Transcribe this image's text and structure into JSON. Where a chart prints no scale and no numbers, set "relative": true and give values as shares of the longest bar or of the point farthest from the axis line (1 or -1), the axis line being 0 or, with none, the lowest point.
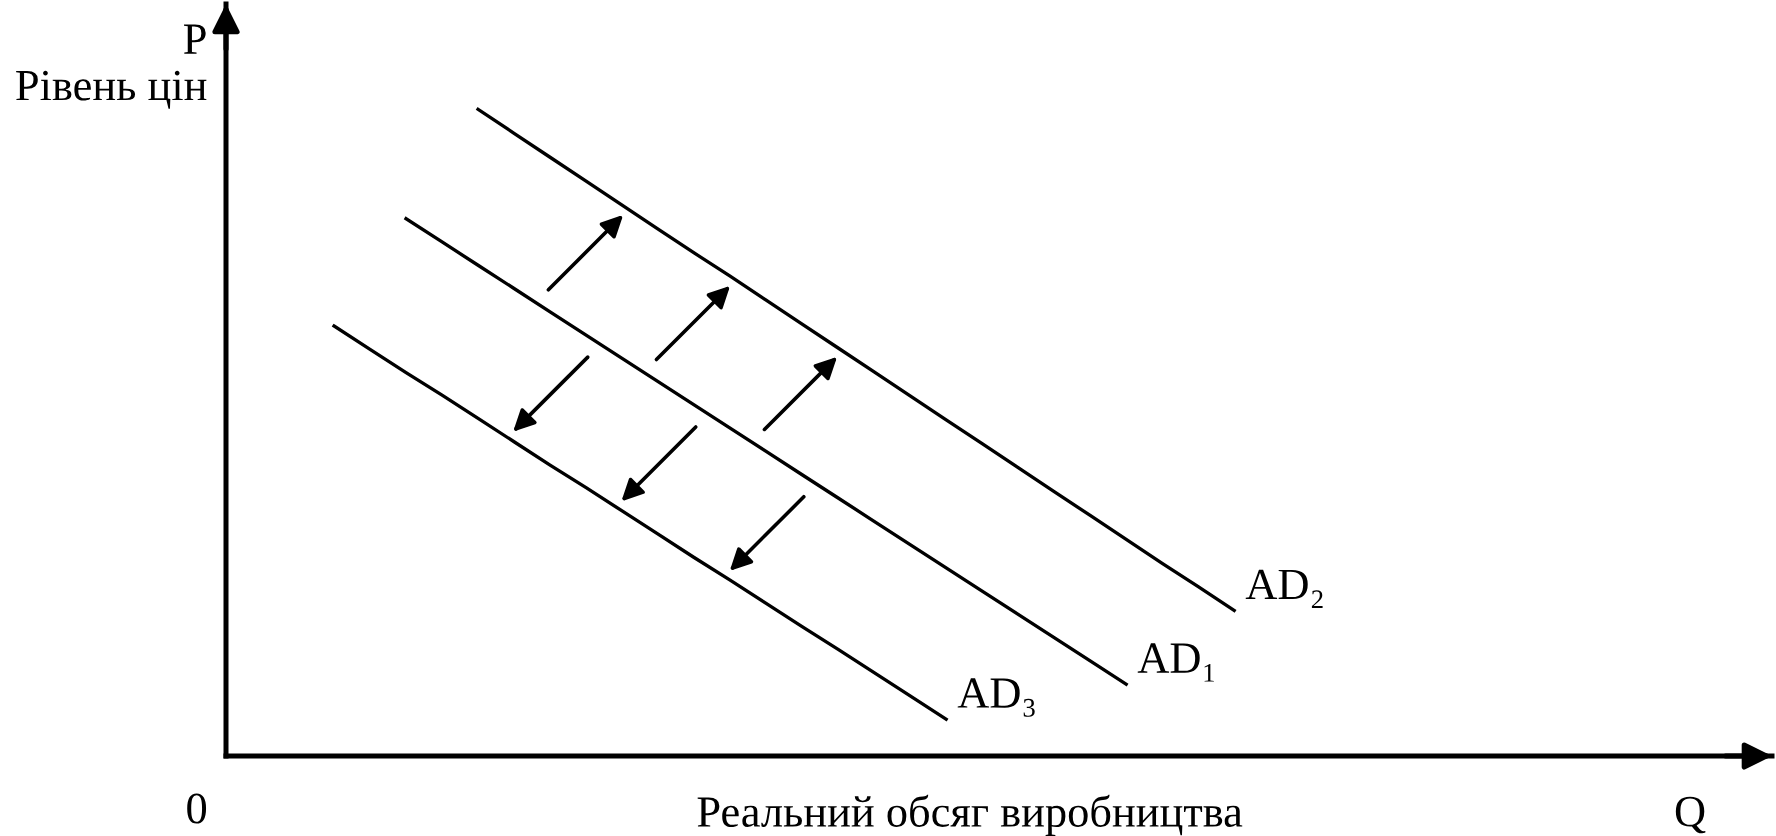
{
  "chart_data": {
    "type": "line",
    "relative": true,
    "ylabel": "P\nРівень цін",
    "xlabel": "Реальний обсяг виробництва",
    "annotations": [
      "Q",
      "0"
    ],
    "line_style": "solid",
    "categories": [
      null,
      null,
      null,
      null,
      null,
      null,
      null,
      null,
      null,
      null,
      null,
      null,
      null,
      null,
      null,
      null,
      null,
      null,
      null,
      null,
      null,
      null,
      null,
      null,
      null,
      null
    ],
    "series": [
      {
        "name": "AD₁",
        "color": "#000000",
        "values": [
          null,
          null,
          0.831,
          0.795,
          0.759,
          0.723,
          0.687,
          0.651,
          0.615,
          0.579,
          0.543,
          0.507,
          0.471,
          0.435,
          0.399,
          0.363,
          0.327,
          0.291,
          0.255,
          0.219,
          0.183,
          0.147,
          0.111,
          null,
          null,
          null
        ]
      },
      {
        "name": "AD₂",
        "color": "#000000",
        "values": [
          null,
          null,
          null,
          null,
          1.0,
          0.963,
          0.926,
          0.889,
          0.852,
          0.815,
          0.778,
          0.742,
          0.705,
          0.668,
          0.631,
          0.594,
          0.557,
          0.52,
          0.483,
          0.446,
          0.409,
          0.372,
          0.335,
          0.298,
          0.262,
          0.225
        ]
      },
      {
        "name": "AD₃",
        "color": "#000000",
        "values": [
          0.665,
          0.629,
          0.593,
          0.558,
          0.522,
          0.486,
          0.45,
          0.415,
          0.379,
          0.343,
          0.307,
          0.272,
          0.236,
          0.2,
          0.165,
          0.129,
          0.093,
          0.057,
          null,
          null,
          null,
          null,
          null,
          null,
          null,
          null
        ]
      }
    ]
  }
}
